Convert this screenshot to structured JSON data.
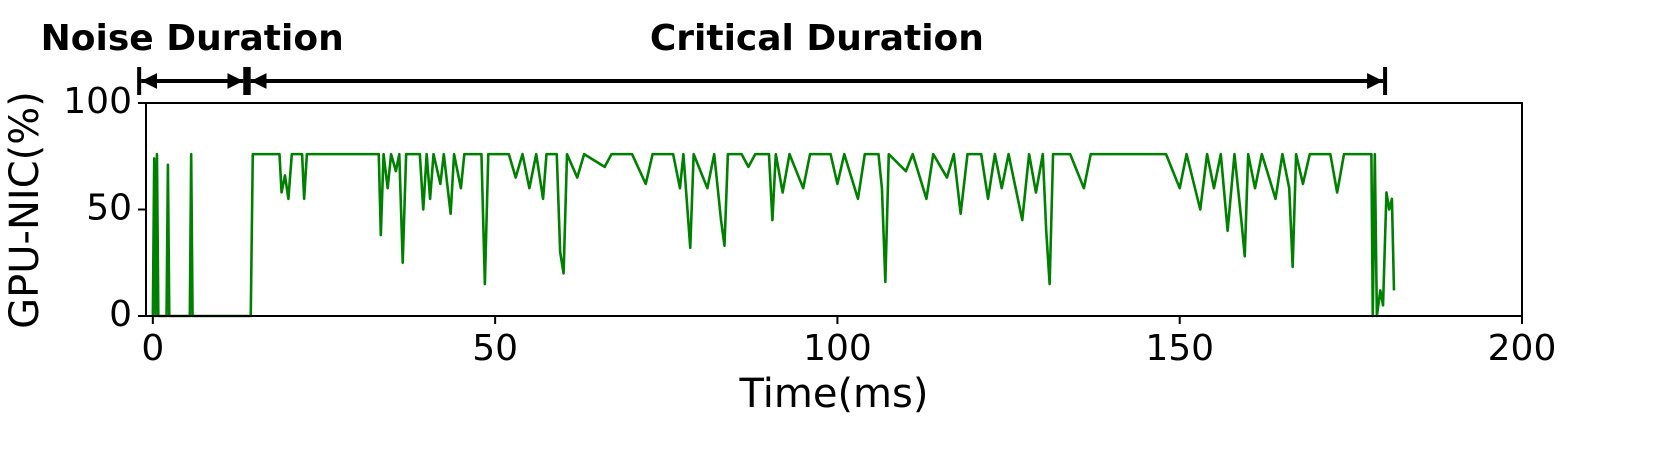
{
  "chart_data": {
    "type": "line",
    "xlabel": "Time(ms)",
    "ylabel": "GPU-NIC(%)",
    "xlim": [
      -1,
      200
    ],
    "ylim": [
      0,
      100
    ],
    "xticks": [
      0,
      50,
      100,
      150,
      200
    ],
    "yticks": [
      0,
      50,
      100
    ],
    "grid": false,
    "annotations": [
      {
        "text": "Noise Duration",
        "x_start": -2,
        "x_end": 13.5
      },
      {
        "text": "Critical Duration",
        "x_start": 14,
        "x_end": 180
      }
    ],
    "x": [
      0,
      0.2,
      0.4,
      0.6,
      0.8,
      2,
      2.2,
      2.4,
      5.4,
      5.6,
      5.8,
      14.3,
      14.6,
      18.5,
      18.8,
      19.3,
      19.8,
      20.3,
      21.8,
      22.1,
      22.5,
      33,
      33.3,
      33.7,
      34.3,
      34.8,
      35.5,
      36,
      36.5,
      37,
      39,
      39.5,
      40,
      40.5,
      41,
      42,
      42.5,
      43.5,
      44,
      45,
      45.5,
      48,
      48.5,
      49,
      52,
      53,
      54,
      55,
      56,
      57,
      57.5,
      59,
      59.5,
      60,
      60.5,
      62,
      63,
      66,
      67,
      70,
      72,
      73,
      76,
      77,
      77.5,
      78.5,
      79,
      81,
      82,
      83,
      83.5,
      84,
      86,
      87,
      88,
      90,
      90.5,
      91,
      92,
      93,
      95,
      96,
      99,
      100,
      101,
      103,
      104,
      106,
      106.5,
      107,
      107.5,
      110,
      111,
      113,
      114,
      116,
      117,
      118,
      119,
      121,
      122,
      123,
      124,
      125,
      127,
      128,
      129,
      130,
      130.5,
      131,
      131.5,
      134,
      136,
      137,
      148,
      150,
      151,
      153,
      154,
      155,
      156,
      157,
      158,
      159,
      159.5,
      160,
      161,
      162,
      164,
      165,
      166,
      166.5,
      167,
      168,
      169,
      172,
      173,
      174,
      178,
      178.2,
      178.5,
      178.8,
      179.3,
      179.7,
      180.2,
      180.6,
      181,
      181.3
    ],
    "series": [
      {
        "color": "#008000",
        "values": [
          0,
          74,
          0,
          76,
          0,
          0,
          71,
          0,
          0,
          76,
          0,
          0,
          76,
          76,
          58,
          66,
          55,
          76,
          76,
          55,
          76,
          76,
          38,
          76,
          60,
          76,
          68,
          76,
          25,
          76,
          76,
          50,
          76,
          55,
          76,
          62,
          76,
          48,
          76,
          60,
          76,
          76,
          15,
          76,
          76,
          65,
          76,
          60,
          76,
          55,
          76,
          76,
          30,
          20,
          76,
          65,
          76,
          70,
          76,
          76,
          62,
          76,
          76,
          60,
          76,
          32,
          76,
          60,
          76,
          45,
          33,
          76,
          76,
          70,
          76,
          76,
          45,
          76,
          58,
          76,
          60,
          76,
          76,
          62,
          76,
          55,
          76,
          76,
          60,
          16,
          76,
          68,
          76,
          55,
          76,
          65,
          76,
          48,
          76,
          76,
          55,
          76,
          60,
          76,
          45,
          76,
          58,
          76,
          40,
          15,
          76,
          76,
          60,
          76,
          76,
          60,
          76,
          50,
          76,
          60,
          76,
          40,
          76,
          45,
          28,
          76,
          60,
          76,
          55,
          76,
          60,
          23,
          76,
          62,
          76,
          76,
          58,
          76,
          76,
          0,
          76,
          0,
          12,
          5,
          58,
          50,
          55,
          12
        ]
      }
    ]
  }
}
